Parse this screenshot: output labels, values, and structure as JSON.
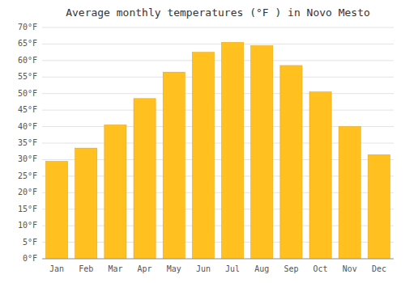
{
  "chart_data": {
    "type": "bar",
    "title": "Average monthly temperatures (°F ) in Novo Mesto",
    "categories": [
      "Jan",
      "Feb",
      "Mar",
      "Apr",
      "May",
      "Jun",
      "Jul",
      "Aug",
      "Sep",
      "Oct",
      "Nov",
      "Dec"
    ],
    "values": [
      29.5,
      33.5,
      40.5,
      48.5,
      56.5,
      62.5,
      65.5,
      64.5,
      58.5,
      50.5,
      40.0,
      31.5
    ],
    "color": "#FFC020",
    "ylim": [
      0,
      70
    ],
    "yticks": [
      {
        "value": 0,
        "label": "0°F"
      },
      {
        "value": 5,
        "label": "5°F"
      },
      {
        "value": 10,
        "label": "10°F"
      },
      {
        "value": 15,
        "label": "15°F"
      },
      {
        "value": 20,
        "label": "20°F"
      },
      {
        "value": 25,
        "label": "25°F"
      },
      {
        "value": 30,
        "label": "30°F"
      },
      {
        "value": 35,
        "label": "35°F"
      },
      {
        "value": 40,
        "label": "40°F"
      },
      {
        "value": 45,
        "label": "45°F"
      },
      {
        "value": 50,
        "label": "50°F"
      },
      {
        "value": 55,
        "label": "55°F"
      },
      {
        "value": 60,
        "label": "60°F"
      },
      {
        "value": 65,
        "label": "65°F"
      },
      {
        "value": 70,
        "label": "70°F"
      }
    ],
    "grid": true
  }
}
